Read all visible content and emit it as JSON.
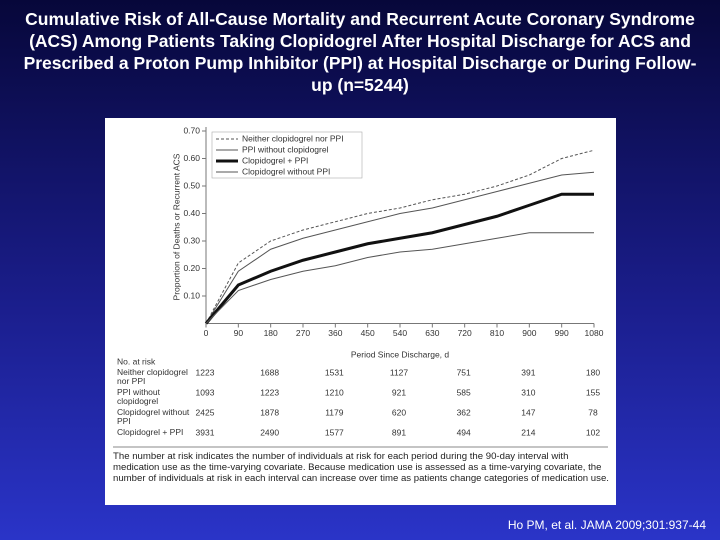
{
  "chart_data": {
    "type": "line",
    "title": "Cumulative Risk of All-Cause Mortality and Recurrent Acute Coronary Syndrome (ACS) Among Patients Taking Clopidogrel After Hospital Discharge for ACS and Prescribed a Proton Pump Inhibitor (PPI) at Hospital Discharge or During Follow-up (n=5244)",
    "x_label": "Period Since Discharge, d",
    "y_label": "Proportion of Deaths or Recurrent ACS",
    "x": [
      0,
      90,
      180,
      270,
      360,
      450,
      540,
      630,
      720,
      810,
      900,
      990,
      1080
    ],
    "series": [
      {
        "name": "Neither clopidogrel nor PPI",
        "color": "#555555",
        "style": "dashed",
        "width": 1,
        "values": [
          0,
          0.22,
          0.3,
          0.34,
          0.37,
          0.4,
          0.42,
          0.45,
          0.47,
          0.5,
          0.54,
          0.6,
          0.63
        ]
      },
      {
        "name": "PPI without clopidogrel",
        "color": "#555555",
        "style": "solid",
        "width": 1,
        "values": [
          0,
          0.19,
          0.27,
          0.31,
          0.34,
          0.37,
          0.4,
          0.42,
          0.45,
          0.48,
          0.51,
          0.54,
          0.55
        ]
      },
      {
        "name": "Clopidogrel + PPI",
        "color": "#111111",
        "style": "solid",
        "width": 3,
        "values": [
          0,
          0.14,
          0.19,
          0.23,
          0.26,
          0.29,
          0.31,
          0.33,
          0.36,
          0.39,
          0.43,
          0.47,
          0.47
        ]
      },
      {
        "name": "Clopidogrel without PPI",
        "color": "#555555",
        "style": "solid",
        "width": 1,
        "values": [
          0,
          0.12,
          0.16,
          0.19,
          0.21,
          0.24,
          0.26,
          0.27,
          0.29,
          0.31,
          0.33,
          0.33,
          0.33
        ]
      }
    ],
    "xlim": [
      0,
      1080
    ],
    "xticks": [
      0,
      90,
      180,
      270,
      360,
      450,
      540,
      630,
      720,
      810,
      900,
      990,
      1080
    ],
    "ylim": [
      0,
      0.7
    ],
    "yticks": [
      {
        "value": 0.1,
        "label": "0.10"
      },
      {
        "value": 0.2,
        "label": "0.20"
      },
      {
        "value": 0.3,
        "label": "0.30"
      },
      {
        "value": 0.4,
        "label": "0.40"
      },
      {
        "value": 0.5,
        "label": "0.50"
      },
      {
        "value": 0.6,
        "label": "0.60"
      },
      {
        "value": 0.7,
        "label": "0.70"
      }
    ],
    "legend": "top-left",
    "grid": false
  },
  "risk_table": {
    "title": "No. at risk",
    "rows": [
      {
        "label": "Neither clopidogrel nor PPI",
        "counts": [
          "1223",
          "1688",
          "1531",
          "1127",
          "751",
          "391",
          "180"
        ]
      },
      {
        "label": "PPI without clopidogrel",
        "counts": [
          "1093",
          "1223",
          "1210",
          "921",
          "585",
          "310",
          "155"
        ]
      },
      {
        "label": "Clopidogrel without PPI",
        "counts": [
          "2425",
          "1878",
          "1179",
          "620",
          "362",
          "147",
          "78"
        ]
      },
      {
        "label": "Clopidogrel + PPI",
        "counts": [
          "3931",
          "2490",
          "1577",
          "891",
          "494",
          "214",
          "102"
        ]
      }
    ]
  },
  "note": "The number at risk indicates the number of individuals at risk for each period during the 90-day interval with medication use as the time-varying covariate. Because medication use is assessed as a time-varying covariate, the number of individuals at risk in each interval can increase over time as patients change categories of medication use.",
  "citation": "Ho PM, et al. JAMA 2009;301:937-44"
}
